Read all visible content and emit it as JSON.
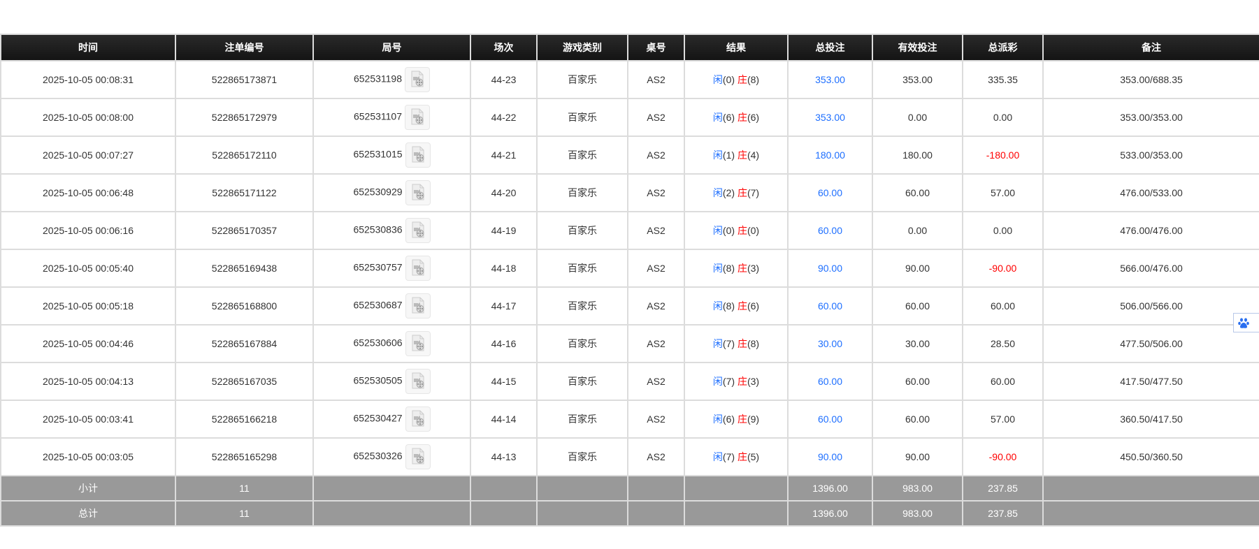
{
  "columns": [
    "时间",
    "注单编号",
    "局号",
    "场次",
    "游戏类别",
    "桌号",
    "结果",
    "总投注",
    "有效投注",
    "总派彩",
    "备注"
  ],
  "result_labels": {
    "player": "闲",
    "banker": "庄"
  },
  "colors": {
    "header_bg": "#1a1a1a",
    "summary_bg": "#999999",
    "blue": "#1e6fff",
    "red": "#ff0000"
  },
  "rows": [
    {
      "time": "2025-10-05 00:08:31",
      "bet_id": "522865173871",
      "round": "652531198",
      "session": "44-23",
      "game": "百家乐",
      "table": "AS2",
      "player": "(0)",
      "banker": "(8)",
      "total_bet": "353.00",
      "valid_bet": "353.00",
      "payout": "335.35",
      "payout_negative": false,
      "note": "353.00/688.35"
    },
    {
      "time": "2025-10-05 00:08:00",
      "bet_id": "522865172979",
      "round": "652531107",
      "session": "44-22",
      "game": "百家乐",
      "table": "AS2",
      "player": "(6)",
      "banker": "(6)",
      "total_bet": "353.00",
      "valid_bet": "0.00",
      "payout": "0.00",
      "payout_negative": false,
      "note": "353.00/353.00"
    },
    {
      "time": "2025-10-05 00:07:27",
      "bet_id": "522865172110",
      "round": "652531015",
      "session": "44-21",
      "game": "百家乐",
      "table": "AS2",
      "player": "(1)",
      "banker": "(4)",
      "total_bet": "180.00",
      "valid_bet": "180.00",
      "payout": "-180.00",
      "payout_negative": true,
      "note": "533.00/353.00"
    },
    {
      "time": "2025-10-05 00:06:48",
      "bet_id": "522865171122",
      "round": "652530929",
      "session": "44-20",
      "game": "百家乐",
      "table": "AS2",
      "player": "(2)",
      "banker": "(7)",
      "total_bet": "60.00",
      "valid_bet": "60.00",
      "payout": "57.00",
      "payout_negative": false,
      "note": "476.00/533.00"
    },
    {
      "time": "2025-10-05 00:06:16",
      "bet_id": "522865170357",
      "round": "652530836",
      "session": "44-19",
      "game": "百家乐",
      "table": "AS2",
      "player": "(0)",
      "banker": "(0)",
      "total_bet": "60.00",
      "valid_bet": "0.00",
      "payout": "0.00",
      "payout_negative": false,
      "note": "476.00/476.00"
    },
    {
      "time": "2025-10-05 00:05:40",
      "bet_id": "522865169438",
      "round": "652530757",
      "session": "44-18",
      "game": "百家乐",
      "table": "AS2",
      "player": "(8)",
      "banker": "(3)",
      "total_bet": "90.00",
      "valid_bet": "90.00",
      "payout": "-90.00",
      "payout_negative": true,
      "note": "566.00/476.00"
    },
    {
      "time": "2025-10-05 00:05:18",
      "bet_id": "522865168800",
      "round": "652530687",
      "session": "44-17",
      "game": "百家乐",
      "table": "AS2",
      "player": "(8)",
      "banker": "(6)",
      "total_bet": "60.00",
      "valid_bet": "60.00",
      "payout": "60.00",
      "payout_negative": false,
      "note": "506.00/566.00"
    },
    {
      "time": "2025-10-05 00:04:46",
      "bet_id": "522865167884",
      "round": "652530606",
      "session": "44-16",
      "game": "百家乐",
      "table": "AS2",
      "player": "(7)",
      "banker": "(8)",
      "total_bet": "30.00",
      "valid_bet": "30.00",
      "payout": "28.50",
      "payout_negative": false,
      "note": "477.50/506.00"
    },
    {
      "time": "2025-10-05 00:04:13",
      "bet_id": "522865167035",
      "round": "652530505",
      "session": "44-15",
      "game": "百家乐",
      "table": "AS2",
      "player": "(7)",
      "banker": "(3)",
      "total_bet": "60.00",
      "valid_bet": "60.00",
      "payout": "60.00",
      "payout_negative": false,
      "note": "417.50/477.50"
    },
    {
      "time": "2025-10-05 00:03:41",
      "bet_id": "522865166218",
      "round": "652530427",
      "session": "44-14",
      "game": "百家乐",
      "table": "AS2",
      "player": "(6)",
      "banker": "(9)",
      "total_bet": "60.00",
      "valid_bet": "60.00",
      "payout": "57.00",
      "payout_negative": false,
      "note": "360.50/417.50"
    },
    {
      "time": "2025-10-05 00:03:05",
      "bet_id": "522865165298",
      "round": "652530326",
      "session": "44-13",
      "game": "百家乐",
      "table": "AS2",
      "player": "(7)",
      "banker": "(5)",
      "total_bet": "90.00",
      "valid_bet": "90.00",
      "payout": "-90.00",
      "payout_negative": true,
      "note": "450.50/360.50"
    }
  ],
  "summary": [
    {
      "label": "小计",
      "count": "11",
      "total_bet": "1396.00",
      "valid_bet": "983.00",
      "payout": "237.85"
    },
    {
      "label": "总计",
      "count": "11",
      "total_bet": "1396.00",
      "valid_bet": "983.00",
      "payout": "237.85"
    }
  ],
  "icons": {
    "replay": "video-file-icon",
    "widget": "paw-icon"
  }
}
